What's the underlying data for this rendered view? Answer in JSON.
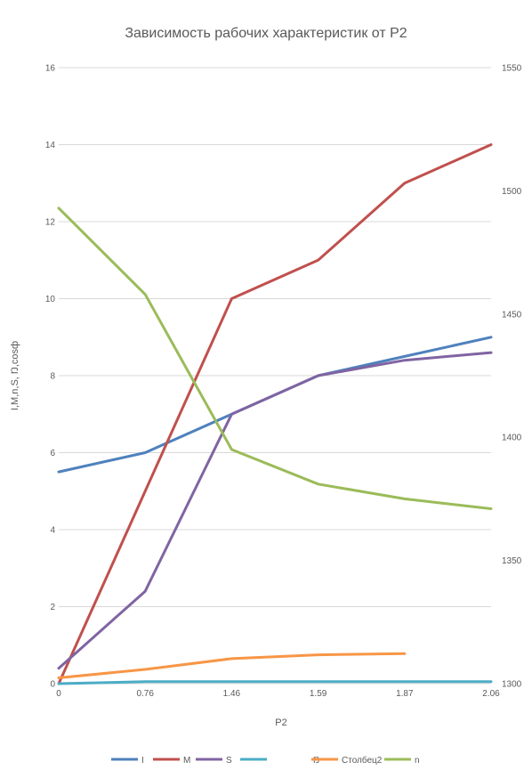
{
  "chart_data": {
    "type": "line",
    "title": "Зависимость рабочих характеристик от Р2",
    "xlabel": "Р2",
    "ylabel": "I,M,n,S, Ŋ,cosф",
    "categories": [
      "0",
      "0.76",
      "1.46",
      "1.59",
      "1.87",
      "2.06"
    ],
    "ylim": [
      0,
      16
    ],
    "y_ticks": [
      0,
      2,
      4,
      6,
      8,
      10,
      12,
      14,
      16
    ],
    "y2lim": [
      1300,
      1550
    ],
    "y2_ticks": [
      1300,
      1350,
      1400,
      1450,
      1500,
      1550
    ],
    "grid": true,
    "legend_position": "bottom",
    "series": [
      {
        "name": "I",
        "axis": "left",
        "color": "#4f81bd",
        "values": [
          5.5,
          6.0,
          7.0,
          8.0,
          8.5,
          9.0
        ]
      },
      {
        "name": "M",
        "axis": "left",
        "color": "#c0504d",
        "values": [
          0,
          5.0,
          10.0,
          11.0,
          13.0,
          14.0
        ]
      },
      {
        "name": "S",
        "axis": "left",
        "color": "#8064a2",
        "values": [
          0.4,
          2.4,
          7.0,
          8.0,
          8.4,
          8.6
        ]
      },
      {
        "name": "",
        "axis": "left",
        "color": "#4bacc6",
        "values": [
          0.0,
          0.05,
          0.05,
          0.05,
          0.05,
          0.05
        ]
      },
      {
        "name": "Ŋ",
        "axis": "left",
        "color": "#ffffff",
        "values": [
          null,
          null,
          null,
          null,
          null,
          null
        ]
      },
      {
        "name": "Столбец2",
        "axis": "left",
        "color": "#f79646",
        "values": [
          0.15,
          0.37,
          0.65,
          0.75,
          0.78,
          null
        ]
      },
      {
        "name": "n",
        "axis": "right",
        "color": "#9bbb59",
        "values": [
          1493,
          1458,
          1395,
          1381,
          1375,
          1371
        ]
      }
    ]
  }
}
